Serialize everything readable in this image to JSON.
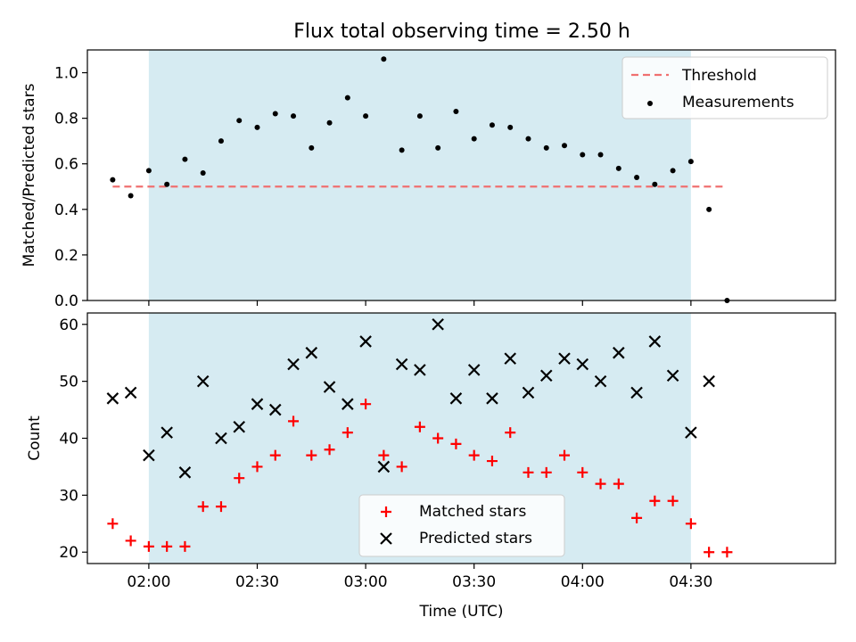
{
  "figure_title": "Flux total observing time = 2.50 h",
  "colors": {
    "band": "#add8e6",
    "threshold": "#f07070",
    "measurements": "#000000",
    "matched": "#ff0000",
    "predicted": "#000000"
  },
  "chart_data": [
    {
      "type": "scatter",
      "ylabel": "Matched/Predicted stars",
      "ylim": [
        0,
        1.1
      ],
      "yticks": [
        "0.0",
        "0.2",
        "0.4",
        "0.6",
        "0.8",
        "1.0"
      ],
      "x_format": "time HH:MM (UTC)",
      "xlim": [
        "01:43",
        "05:10"
      ],
      "shaded_interval": [
        "02:00",
        "04:30"
      ],
      "threshold": 0.5,
      "legend_position": "top-right",
      "legend": [
        "Threshold",
        "Measurements"
      ],
      "series": [
        {
          "name": "Measurements",
          "marker": "dot",
          "x": [
            "01:50",
            "01:55",
            "02:00",
            "02:05",
            "02:10",
            "02:15",
            "02:20",
            "02:25",
            "02:30",
            "02:35",
            "02:40",
            "02:45",
            "02:50",
            "02:55",
            "03:00",
            "03:05",
            "03:10",
            "03:15",
            "03:20",
            "03:25",
            "03:30",
            "03:35",
            "03:40",
            "03:45",
            "03:50",
            "03:55",
            "04:00",
            "04:05",
            "04:10",
            "04:15",
            "04:20",
            "04:25",
            "04:30",
            "04:35",
            "04:40"
          ],
          "y": [
            0.53,
            0.46,
            0.57,
            0.51,
            0.62,
            0.56,
            0.7,
            0.79,
            0.76,
            0.82,
            0.81,
            0.67,
            0.78,
            0.89,
            0.81,
            1.06,
            0.66,
            0.81,
            0.67,
            0.83,
            0.71,
            0.77,
            0.76,
            0.71,
            0.67,
            0.68,
            0.64,
            0.64,
            0.58,
            0.54,
            0.51,
            0.57,
            0.61,
            0.4,
            0.0
          ]
        }
      ]
    },
    {
      "type": "scatter",
      "ylabel": "Count",
      "xlabel": "Time (UTC)",
      "ylim": [
        18,
        62
      ],
      "yticks": [
        "20",
        "30",
        "40",
        "50",
        "60"
      ],
      "xticks": [
        "02:00",
        "02:30",
        "03:00",
        "03:30",
        "04:00",
        "04:30"
      ],
      "xlim": [
        "01:43",
        "05:10"
      ],
      "shaded_interval": [
        "02:00",
        "04:30"
      ],
      "legend_position": "lower center",
      "legend": [
        "Matched stars",
        "Predicted stars"
      ],
      "series": [
        {
          "name": "Matched stars",
          "marker": "plus",
          "x": [
            "01:50",
            "01:55",
            "02:00",
            "02:05",
            "02:10",
            "02:15",
            "02:20",
            "02:25",
            "02:30",
            "02:35",
            "02:40",
            "02:45",
            "02:50",
            "02:55",
            "03:00",
            "03:05",
            "03:10",
            "03:15",
            "03:20",
            "03:25",
            "03:30",
            "03:35",
            "03:40",
            "03:45",
            "03:50",
            "03:55",
            "04:00",
            "04:05",
            "04:10",
            "04:15",
            "04:20",
            "04:25",
            "04:30",
            "04:35",
            "04:40"
          ],
          "y": [
            25,
            22,
            21,
            21,
            21,
            28,
            28,
            33,
            35,
            37,
            43,
            37,
            38,
            41,
            46,
            37,
            35,
            42,
            40,
            39,
            37,
            36,
            41,
            34,
            34,
            37,
            34,
            32,
            32,
            26,
            29,
            29,
            25,
            20,
            20
          ]
        },
        {
          "name": "Predicted stars",
          "marker": "x",
          "x": [
            "01:50",
            "01:55",
            "02:00",
            "02:05",
            "02:10",
            "02:15",
            "02:20",
            "02:25",
            "02:30",
            "02:35",
            "02:40",
            "02:45",
            "02:50",
            "02:55",
            "03:00",
            "03:05",
            "03:10",
            "03:15",
            "03:20",
            "03:25",
            "03:30",
            "03:35",
            "03:40",
            "03:45",
            "03:50",
            "03:55",
            "04:00",
            "04:05",
            "04:10",
            "04:15",
            "04:20",
            "04:25",
            "04:30",
            "04:35"
          ],
          "y": [
            47,
            48,
            37,
            41,
            34,
            50,
            40,
            42,
            46,
            45,
            53,
            55,
            49,
            46,
            57,
            35,
            53,
            52,
            60,
            47,
            52,
            47,
            54,
            48,
            51,
            54,
            53,
            50,
            55,
            48,
            57,
            51,
            41,
            50
          ]
        }
      ]
    }
  ]
}
